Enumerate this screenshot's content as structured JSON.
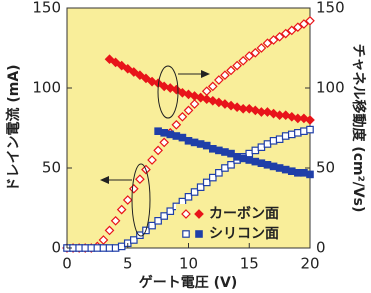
{
  "chart_data": {
    "type": "scatter",
    "x_label": "ゲート電圧 (V)",
    "y_label": "ドレイン電流 (mA)",
    "y2_label": "チャネル移動度 (cm²/Vs)",
    "x": [
      0,
      0.5,
      1,
      1.5,
      2,
      2.5,
      3,
      3.5,
      4,
      4.5,
      5,
      5.5,
      6,
      6.5,
      7,
      7.5,
      8,
      8.5,
      9,
      9.5,
      10,
      10.5,
      11,
      11.5,
      12,
      12.5,
      13,
      13.5,
      14,
      14.5,
      15,
      15.5,
      16,
      16.5,
      17,
      17.5,
      18,
      18.5,
      19,
      19.5,
      20
    ],
    "series": [
      {
        "name": "カーボン面",
        "color": "#e8141a",
        "marker": "diamond",
        "filled": false,
        "values": [
          0,
          0,
          0,
          0,
          0,
          1,
          5,
          11,
          17,
          24,
          30,
          37,
          43,
          49,
          55,
          61,
          66,
          72,
          77,
          82,
          86,
          90,
          94,
          98,
          101,
          105,
          108,
          111,
          114,
          117,
          120,
          122,
          125,
          128,
          130,
          132,
          134,
          136,
          138,
          140,
          142
        ]
      },
      {
        "name": "シリコン面",
        "color": "#1f3fa8",
        "marker": "square",
        "filled": false,
        "values": [
          0,
          0,
          0,
          0,
          0,
          0,
          0,
          0,
          0,
          1,
          3,
          5,
          8,
          11,
          14,
          17,
          20,
          23,
          26,
          29,
          32,
          35,
          38,
          41,
          44,
          47,
          50,
          52,
          55,
          57,
          59,
          61,
          63,
          65,
          67,
          68,
          70,
          71,
          72,
          73,
          74
        ]
      },
      {
        "color": "#e8141a",
        "marker": "diamond",
        "filled": true,
        "axis": "y2",
        "values": [
          null,
          null,
          null,
          null,
          null,
          null,
          null,
          118,
          116,
          114,
          112,
          110,
          108,
          106,
          104,
          103,
          101,
          100,
          99,
          97,
          96,
          95,
          94,
          93,
          92,
          91,
          90,
          89,
          88,
          87,
          87,
          86,
          85,
          85,
          84,
          83,
          83,
          82,
          81,
          81,
          80
        ]
      },
      {
        "color": "#1f3fa8",
        "marker": "square",
        "filled": true,
        "axis": "y2",
        "values": [
          null,
          null,
          null,
          null,
          null,
          null,
          null,
          null,
          null,
          null,
          null,
          null,
          null,
          null,
          null,
          73,
          72,
          71,
          70,
          69,
          67,
          66,
          65,
          64,
          62,
          61,
          60,
          59,
          57,
          56,
          55,
          54,
          53,
          52,
          51,
          50,
          49,
          48,
          47,
          47,
          46
        ]
      }
    ],
    "xlim": [
      0,
      20
    ],
    "xticks": [
      0,
      5,
      10,
      15,
      20
    ],
    "ylim": [
      0,
      150
    ],
    "yticks": [
      0,
      50,
      100,
      150
    ],
    "y2lim": [
      0,
      150
    ],
    "y2ticks": [
      0,
      50,
      100,
      150
    ],
    "background": "#f9ee9a"
  }
}
